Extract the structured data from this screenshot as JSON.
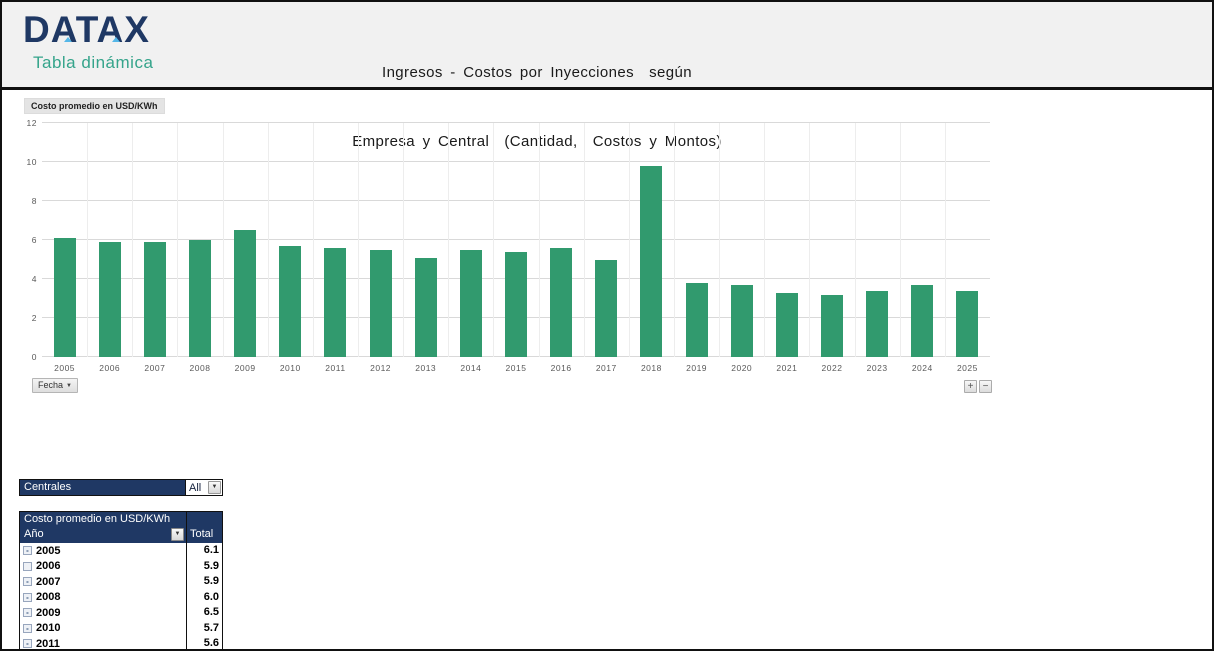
{
  "header": {
    "brand": "DATAX",
    "brand_subtitle": "Tabla dinámica",
    "title_line1": "Ingresos - Costos por Inyecciones  según",
    "title_line2": "Empresa y Central  (Cantidad,  Costos y Montos)"
  },
  "chart": {
    "field_button": "Costo promedio en USD/KWh",
    "axis_field_button": "Fecha",
    "zoom_in_label": "+",
    "zoom_out_label": "−"
  },
  "chart_data": {
    "type": "bar",
    "title": "Costo promedio en USD/KWh",
    "categories": [
      "2005",
      "2006",
      "2007",
      "2008",
      "2009",
      "2010",
      "2011",
      "2012",
      "2013",
      "2014",
      "2015",
      "2016",
      "2017",
      "2018",
      "2019",
      "2020",
      "2021",
      "2022",
      "2023",
      "2024",
      "2025"
    ],
    "values": [
      6.1,
      5.9,
      5.9,
      6.0,
      6.5,
      5.7,
      5.6,
      5.5,
      5.1,
      5.5,
      5.4,
      5.6,
      5.0,
      9.8,
      3.8,
      3.7,
      3.3,
      3.2,
      3.4,
      3.7,
      3.4
    ],
    "xlabel": "",
    "ylabel": "",
    "ylim": [
      0,
      12
    ],
    "ytick_step": 2,
    "grid": true,
    "legend": false,
    "bar_color": "#319a6e"
  },
  "filters": {
    "centrales_label": "Centrales",
    "centrales_value": "All"
  },
  "pivot_table": {
    "title": "Costo promedio en USD/KWh",
    "row_header": "Año",
    "value_header": "Total",
    "rows": [
      {
        "expand": "-",
        "year": "2005",
        "total": "6.1"
      },
      {
        "expand": "",
        "year": "2006",
        "total": "5.9"
      },
      {
        "expand": "-",
        "year": "2007",
        "total": "5.9"
      },
      {
        "expand": "-",
        "year": "2008",
        "total": "6.0"
      },
      {
        "expand": "-",
        "year": "2009",
        "total": "6.5"
      },
      {
        "expand": "-",
        "year": "2010",
        "total": "5.7"
      },
      {
        "expand": "-",
        "year": "2011",
        "total": "5.6"
      }
    ]
  },
  "colors": {
    "brand_navy": "#1f3864",
    "brand_teal": "#35a48b",
    "brand_accent_blue": "#55b7e8",
    "bar_green": "#319a6e",
    "header_navy": "#1f3864",
    "banner_gray": "#f1f1f1",
    "gridline_gray": "#d9d9d9"
  }
}
